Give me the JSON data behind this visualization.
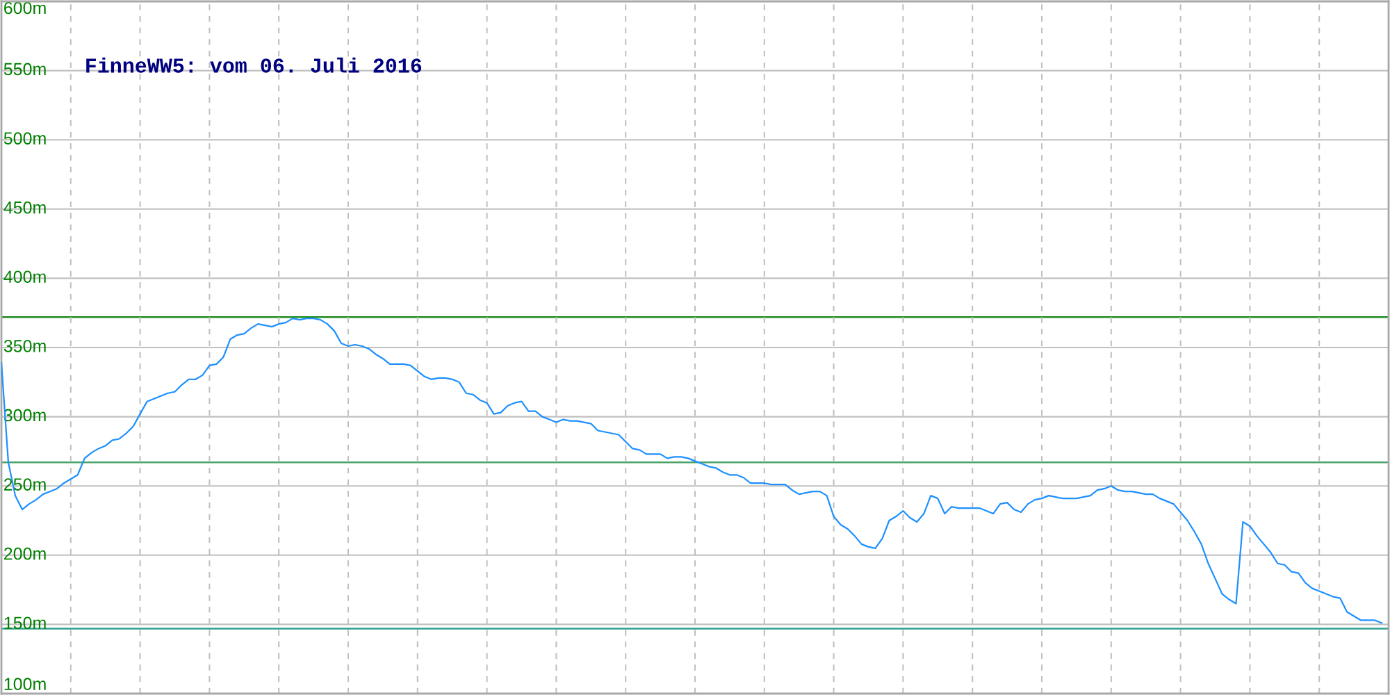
{
  "chart_data": {
    "type": "line",
    "title": "FinneWW5: vom 06. Juli 2016",
    "categories": [
      null,
      null,
      null,
      null,
      null,
      null,
      null,
      null,
      null,
      null,
      null,
      null,
      null,
      null,
      null,
      null,
      null,
      null,
      null,
      null,
      null,
      null,
      null,
      null,
      null,
      null,
      null,
      null,
      null,
      null,
      null,
      null,
      null,
      null,
      null,
      null,
      null,
      null,
      null,
      null,
      null,
      null,
      null,
      null,
      null,
      null,
      null,
      null,
      null,
      null,
      null,
      null,
      null,
      null,
      null,
      null,
      null,
      null,
      null,
      null,
      null,
      null,
      null,
      null,
      null,
      null,
      null,
      null,
      null,
      null,
      null,
      null,
      null,
      null,
      null,
      null,
      null,
      null,
      null,
      null,
      null,
      null,
      null,
      null,
      null,
      null,
      null,
      null,
      null,
      null,
      null,
      null,
      null,
      null,
      null,
      null,
      null,
      null,
      null,
      null,
      null,
      null,
      null,
      null,
      null,
      null,
      null,
      null,
      null,
      null,
      null,
      null,
      null,
      null,
      null,
      null,
      null,
      null,
      null,
      null,
      null,
      null,
      null,
      null,
      null,
      null,
      null,
      null,
      null,
      null,
      null,
      null,
      null,
      null,
      null,
      null,
      null,
      null,
      null,
      null,
      null,
      null,
      null,
      null,
      null,
      null,
      null,
      null,
      null,
      null,
      null,
      null,
      null,
      null,
      null,
      null,
      null,
      null,
      null,
      null,
      null,
      null,
      null,
      null,
      null,
      null,
      null,
      null,
      null,
      null,
      null,
      null,
      null,
      null,
      null,
      null,
      null,
      null,
      null,
      null,
      null,
      null,
      null,
      null,
      null,
      null,
      null,
      null,
      null,
      null,
      null,
      null,
      null,
      null,
      null,
      null,
      null,
      null,
      null,
      null
    ],
    "values": [
      339,
      267,
      243,
      233,
      237,
      240,
      244,
      246,
      248,
      252,
      255,
      258,
      270,
      274,
      277,
      279,
      283,
      284,
      288,
      293,
      302,
      311,
      313,
      315,
      317,
      318,
      323,
      327,
      327,
      330,
      337,
      338,
      343,
      356,
      359,
      360,
      364,
      367,
      366,
      365,
      367,
      368,
      371,
      370,
      371,
      371,
      370,
      367,
      362,
      353,
      351,
      352,
      351,
      349,
      345,
      342,
      338,
      338,
      338,
      337,
      333,
      329,
      327,
      328,
      328,
      327,
      325,
      317,
      316,
      312,
      310,
      302,
      303,
      308,
      310,
      311,
      304,
      304,
      300,
      298,
      296,
      298,
      297,
      297,
      296,
      295,
      290,
      289,
      288,
      287,
      282,
      277,
      276,
      273,
      273,
      273,
      270,
      271,
      271,
      270,
      268,
      266,
      264,
      263,
      260,
      258,
      258,
      256,
      252,
      252,
      252,
      251,
      251,
      251,
      247,
      244,
      245,
      246,
      246,
      243,
      228,
      222,
      219,
      214,
      208,
      206,
      205,
      212,
      225,
      228,
      232,
      227,
      224,
      230,
      243,
      241,
      230,
      235,
      234,
      234,
      234,
      234,
      232,
      230,
      237,
      238,
      233,
      231,
      237,
      240,
      241,
      243,
      242,
      241,
      241,
      241,
      242,
      243,
      247,
      248,
      250,
      247,
      246,
      246,
      245,
      244,
      244,
      241,
      239,
      237,
      231,
      225,
      217,
      208,
      194,
      183,
      172,
      168,
      165,
      224,
      221,
      214,
      208,
      202,
      194,
      193,
      188,
      187,
      180,
      176,
      174,
      172,
      170,
      169,
      159,
      156,
      153,
      153,
      153,
      151
    ],
    "color": "#1e90ff",
    "line_style": "solid",
    "ylim": [
      100,
      600
    ],
    "yticks": [
      {
        "value": 100,
        "label": "100m"
      },
      {
        "value": 150,
        "label": "150m"
      },
      {
        "value": 200,
        "label": "200m"
      },
      {
        "value": 250,
        "label": "250m"
      },
      {
        "value": 300,
        "label": "300m"
      },
      {
        "value": 350,
        "label": "350m"
      },
      {
        "value": 400,
        "label": "400m"
      },
      {
        "value": 450,
        "label": "450m"
      },
      {
        "value": 500,
        "label": "500m"
      },
      {
        "value": 550,
        "label": "550m"
      },
      {
        "value": 600,
        "label": "600m"
      }
    ],
    "ref_lines": [
      {
        "axis": "y",
        "value": 372,
        "color": "#1f8b1f"
      },
      {
        "axis": "y",
        "value": 267,
        "color": "#4ca36a"
      },
      {
        "axis": "y",
        "value": 147,
        "color": "#2e9e8e"
      }
    ],
    "grid": true,
    "tick_labels": "y"
  }
}
